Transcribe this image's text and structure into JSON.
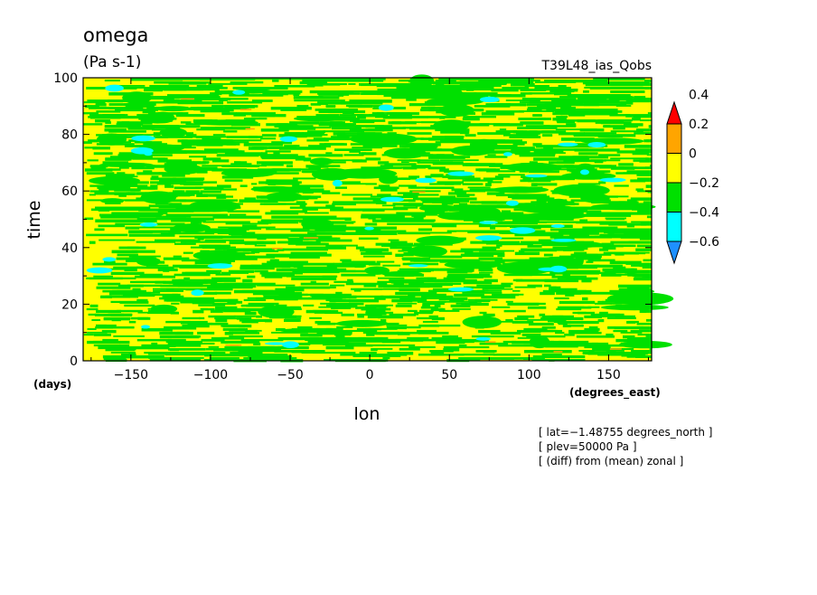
{
  "chart_data": {
    "type": "heatmap",
    "title": "omega",
    "units": "(Pa s-1)",
    "run_label": "T39L48_ias_Qobs",
    "xlabel": "lon",
    "ylabel": "time",
    "x_units": "(degrees_east)",
    "y_units": "(days)",
    "xlim": [
      -180,
      177
    ],
    "ylim": [
      0,
      100
    ],
    "x_ticks": [
      -150,
      -100,
      -50,
      0,
      50,
      100,
      150
    ],
    "y_ticks": [
      0,
      20,
      40,
      60,
      80,
      100
    ],
    "x_tick_labels": [
      "−150",
      "−100",
      "−50",
      "0",
      "50",
      "100",
      "150"
    ],
    "y_tick_labels": [
      "0",
      "20",
      "40",
      "60",
      "80",
      "100"
    ],
    "colorbar": {
      "levels": [
        -0.6,
        -0.4,
        -0.2,
        0,
        0.2,
        0.4
      ],
      "labels": [
        "−0.6",
        "−0.4",
        "−0.2",
        "0",
        "0.2",
        "0.4"
      ],
      "colors": [
        "#1e90ff",
        "#00ffff",
        "#00e000",
        "#ffff00",
        "#ffa500",
        "#ff0000"
      ]
    },
    "notes": [
      "[ lat=−1.48755 degrees_north ]",
      "[ plev=50000 Pa ]",
      "[ (diff) from (mean) zonal ]"
    ],
    "field_colors": {
      "background": "#ffff00",
      "green": "#00e000",
      "cyan": "#00ffff",
      "blue": "#1e90ff",
      "orange": "#ffa500"
    }
  }
}
